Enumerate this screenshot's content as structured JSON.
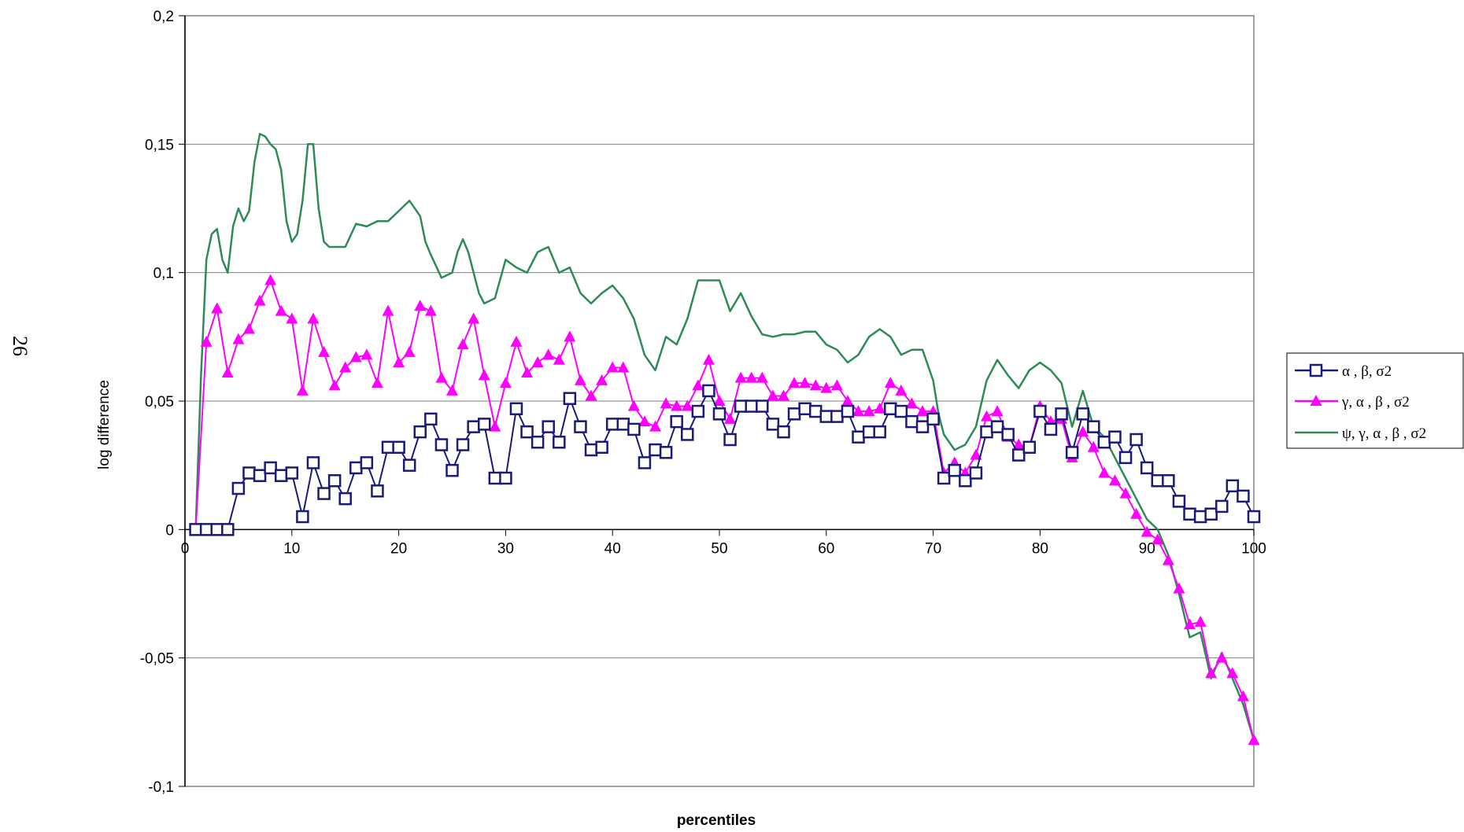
{
  "page_number": "26",
  "chart_data": {
    "type": "line",
    "title": "",
    "xlabel": "percentiles",
    "ylabel": "log difference",
    "xlim": [
      0,
      100
    ],
    "ylim": [
      -0.1,
      0.2
    ],
    "xticks": [
      0,
      10,
      20,
      30,
      40,
      50,
      60,
      70,
      80,
      90,
      100
    ],
    "xtick_labels": [
      "0",
      "10",
      "20",
      "30",
      "40",
      "50",
      "60",
      "70",
      "80",
      "90",
      "100"
    ],
    "yticks": [
      -0.1,
      -0.05,
      0,
      0.05,
      0.1,
      0.15,
      0.2
    ],
    "ytick_labels": [
      "-0,1",
      "-0,05",
      "0",
      "0,05",
      "0,1",
      "0,15",
      "0,2"
    ],
    "grid": "horizontal",
    "legend_position": "right",
    "series": [
      {
        "name": "α , β, σ2",
        "color": "#1a1a7a",
        "marker": "square",
        "x": [
          1,
          2,
          3,
          4,
          5,
          6,
          7,
          8,
          9,
          10,
          11,
          12,
          13,
          14,
          15,
          16,
          17,
          18,
          19,
          20,
          21,
          22,
          23,
          24,
          25,
          26,
          27,
          28,
          29,
          30,
          31,
          32,
          33,
          34,
          35,
          36,
          37,
          38,
          39,
          40,
          41,
          42,
          43,
          44,
          45,
          46,
          47,
          48,
          49,
          50,
          51,
          52,
          53,
          54,
          55,
          56,
          57,
          58,
          59,
          60,
          61,
          62,
          63,
          64,
          65,
          66,
          67,
          68,
          69,
          70,
          71,
          72,
          73,
          74,
          75,
          76,
          77,
          78,
          79,
          80,
          81,
          82,
          83,
          84,
          85,
          86,
          87,
          88,
          89,
          90,
          91,
          92,
          93,
          94,
          95,
          96,
          97,
          98,
          99,
          100
        ],
        "y": [
          0,
          0,
          0,
          0,
          0.016,
          0.022,
          0.021,
          0.024,
          0.021,
          0.022,
          0.005,
          0.026,
          0.014,
          0.019,
          0.012,
          0.024,
          0.026,
          0.015,
          0.032,
          0.032,
          0.025,
          0.038,
          0.043,
          0.033,
          0.023,
          0.033,
          0.04,
          0.041,
          0.02,
          0.02,
          0.047,
          0.038,
          0.034,
          0.04,
          0.034,
          0.051,
          0.04,
          0.031,
          0.032,
          0.041,
          0.041,
          0.039,
          0.026,
          0.031,
          0.03,
          0.042,
          0.037,
          0.046,
          0.054,
          0.045,
          0.035,
          0.048,
          0.048,
          0.048,
          0.041,
          0.038,
          0.045,
          0.047,
          0.046,
          0.044,
          0.044,
          0.046,
          0.036,
          0.038,
          0.038,
          0.047,
          0.046,
          0.042,
          0.04,
          0.043,
          0.02,
          0.023,
          0.019,
          0.022,
          0.038,
          0.04,
          0.037,
          0.029,
          0.032,
          0.046,
          0.039,
          0.045,
          0.03,
          0.045,
          0.04,
          0.034,
          0.036,
          0.028,
          0.035,
          0.024,
          0.019,
          0.019,
          0.011,
          0.006,
          0.005,
          0.006,
          0.009,
          0.017,
          0.013,
          0.005
        ]
      },
      {
        "name": "γ, α , β , σ2",
        "color": "#ff00ff",
        "marker": "triangle",
        "x": [
          1,
          2,
          3,
          4,
          5,
          6,
          7,
          8,
          9,
          10,
          11,
          12,
          13,
          14,
          15,
          16,
          17,
          18,
          19,
          20,
          21,
          22,
          23,
          24,
          25,
          26,
          27,
          28,
          29,
          30,
          31,
          32,
          33,
          34,
          35,
          36,
          37,
          38,
          39,
          40,
          41,
          42,
          43,
          44,
          45,
          46,
          47,
          48,
          49,
          50,
          51,
          52,
          53,
          54,
          55,
          56,
          57,
          58,
          59,
          60,
          61,
          62,
          63,
          64,
          65,
          66,
          67,
          68,
          69,
          70,
          71,
          72,
          73,
          74,
          75,
          76,
          77,
          78,
          79,
          80,
          81,
          82,
          83,
          84,
          85,
          86,
          87,
          88,
          89,
          90,
          91,
          92,
          93,
          94,
          95,
          96,
          97,
          98,
          99,
          100
        ],
        "y": [
          0,
          0.073,
          0.086,
          0.061,
          0.074,
          0.078,
          0.089,
          0.097,
          0.085,
          0.082,
          0.054,
          0.082,
          0.069,
          0.056,
          0.063,
          0.067,
          0.068,
          0.057,
          0.085,
          0.065,
          0.069,
          0.087,
          0.085,
          0.059,
          0.054,
          0.072,
          0.082,
          0.06,
          0.04,
          0.057,
          0.073,
          0.061,
          0.065,
          0.068,
          0.066,
          0.075,
          0.058,
          0.052,
          0.058,
          0.063,
          0.063,
          0.048,
          0.042,
          0.04,
          0.049,
          0.048,
          0.048,
          0.056,
          0.066,
          0.05,
          0.043,
          0.059,
          0.059,
          0.059,
          0.052,
          0.052,
          0.057,
          0.057,
          0.056,
          0.055,
          0.056,
          0.05,
          0.046,
          0.046,
          0.047,
          0.057,
          0.054,
          0.049,
          0.046,
          0.046,
          0.022,
          0.026,
          0.022,
          0.029,
          0.044,
          0.046,
          0.036,
          0.033,
          0.032,
          0.048,
          0.042,
          0.043,
          0.028,
          0.038,
          0.032,
          0.022,
          0.019,
          0.014,
          0.006,
          -0.001,
          -0.004,
          -0.012,
          -0.023,
          -0.037,
          -0.036,
          -0.056,
          -0.05,
          -0.056,
          -0.065,
          -0.082
        ]
      },
      {
        "name": "ψ, γ, α , β , σ2",
        "color": "#2e8b57",
        "marker": "none",
        "x": [
          1,
          1.5,
          2,
          2.5,
          3,
          3.5,
          4,
          4.5,
          5,
          5.5,
          6,
          6.5,
          7,
          7.5,
          8,
          8.5,
          9,
          9.5,
          10,
          10.5,
          11,
          11.5,
          12,
          12.5,
          13,
          13.5,
          14,
          15,
          16,
          17,
          18,
          19,
          20,
          21,
          22,
          22.5,
          23,
          24,
          25,
          25.5,
          26,
          26.5,
          27,
          27.5,
          28,
          29,
          30,
          31,
          32,
          33,
          34,
          35,
          36,
          37,
          38,
          39,
          40,
          41,
          42,
          43,
          44,
          45,
          46,
          47,
          48,
          49,
          50,
          51,
          52,
          53,
          54,
          55,
          56,
          57,
          58,
          59,
          60,
          61,
          62,
          63,
          64,
          65,
          66,
          67,
          68,
          69,
          70,
          70.5,
          71,
          72,
          73,
          74,
          75,
          76,
          77,
          78,
          79,
          80,
          81,
          82,
          83,
          84,
          85,
          86,
          87,
          88,
          89,
          90,
          91,
          92,
          93,
          94,
          95,
          96,
          97,
          98,
          99,
          100
        ],
        "y": [
          0,
          0.06,
          0.105,
          0.115,
          0.117,
          0.105,
          0.1,
          0.118,
          0.125,
          0.12,
          0.124,
          0.143,
          0.154,
          0.153,
          0.15,
          0.148,
          0.14,
          0.12,
          0.112,
          0.115,
          0.128,
          0.15,
          0.15,
          0.125,
          0.112,
          0.11,
          0.11,
          0.11,
          0.119,
          0.118,
          0.12,
          0.12,
          0.124,
          0.128,
          0.122,
          0.112,
          0.107,
          0.098,
          0.1,
          0.108,
          0.113,
          0.108,
          0.1,
          0.092,
          0.088,
          0.09,
          0.105,
          0.102,
          0.1,
          0.108,
          0.11,
          0.1,
          0.102,
          0.092,
          0.088,
          0.092,
          0.095,
          0.09,
          0.082,
          0.068,
          0.062,
          0.075,
          0.072,
          0.082,
          0.097,
          0.097,
          0.097,
          0.085,
          0.092,
          0.083,
          0.076,
          0.075,
          0.076,
          0.076,
          0.077,
          0.077,
          0.072,
          0.07,
          0.065,
          0.068,
          0.075,
          0.078,
          0.075,
          0.068,
          0.07,
          0.07,
          0.058,
          0.045,
          0.037,
          0.031,
          0.033,
          0.04,
          0.058,
          0.066,
          0.06,
          0.055,
          0.062,
          0.065,
          0.062,
          0.057,
          0.04,
          0.054,
          0.04,
          0.036,
          0.028,
          0.02,
          0.012,
          0.004,
          0,
          -0.01,
          -0.025,
          -0.042,
          -0.04,
          -0.058,
          -0.048,
          -0.058,
          -0.068,
          -0.082
        ]
      }
    ]
  }
}
